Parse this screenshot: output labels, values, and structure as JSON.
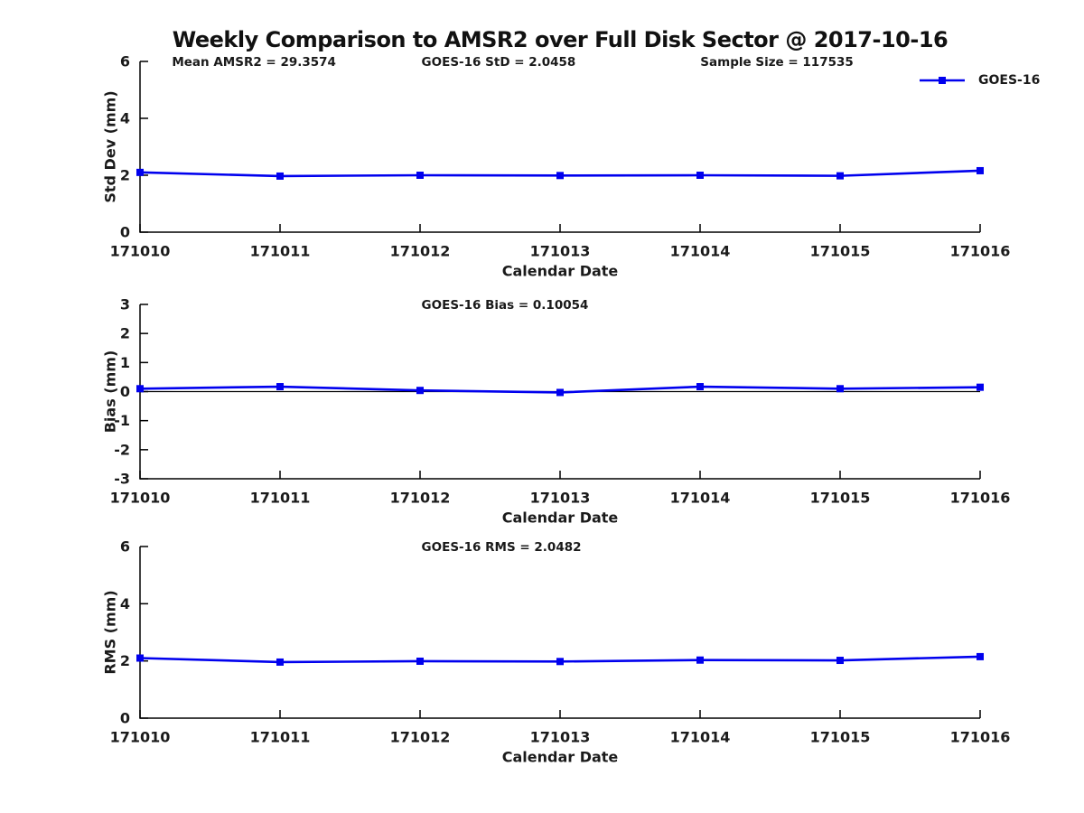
{
  "title": "Weekly Comparison to AMSR2 over Full Disk Sector @ 2017-10-16",
  "colors": {
    "line": "#0000EE",
    "axis": "#000000",
    "text": "#1a1a1a"
  },
  "legend": {
    "label": "GOES-16"
  },
  "chart_data": [
    {
      "type": "line",
      "name": "stddev",
      "ylabel": "Std Dev (mm)",
      "xlabel": "Calendar Date",
      "categories": [
        "171010",
        "171011",
        "171012",
        "171013",
        "171014",
        "171015",
        "171016"
      ],
      "series": [
        {
          "name": "GOES-16",
          "values": [
            2.1,
            1.97,
            2.0,
            1.99,
            2.0,
            1.98,
            2.16
          ]
        }
      ],
      "ylim": [
        0,
        6
      ],
      "yticks": [
        0,
        2,
        4,
        6
      ],
      "grid": false,
      "legend_position": "top-right",
      "show_legend": true,
      "zero_line": false,
      "annotations": [
        {
          "id": "mean-amsr2",
          "text": "Mean AMSR2 = 29.3574",
          "xfrac": 0.038
        },
        {
          "id": "goes16-std",
          "text": "GOES-16 StD = 2.0458",
          "xfrac": 0.335
        },
        {
          "id": "sample-size",
          "text": "Sample Size = 117535",
          "xfrac": 0.667
        }
      ]
    },
    {
      "type": "line",
      "name": "bias",
      "ylabel": "Bias (mm)",
      "xlabel": "Calendar Date",
      "categories": [
        "171010",
        "171011",
        "171012",
        "171013",
        "171014",
        "171015",
        "171016"
      ],
      "series": [
        {
          "name": "GOES-16",
          "values": [
            0.1,
            0.17,
            0.04,
            -0.03,
            0.17,
            0.1,
            0.15
          ]
        }
      ],
      "ylim": [
        -3,
        3
      ],
      "yticks": [
        3,
        2,
        1,
        0,
        -1,
        -2,
        -3
      ],
      "grid": false,
      "show_legend": false,
      "zero_line": true,
      "annotations": [
        {
          "id": "goes16-bias",
          "text": "GOES-16 Bias  = 0.10054",
          "xfrac": 0.335
        }
      ]
    },
    {
      "type": "line",
      "name": "rms",
      "ylabel": "RMS (mm)",
      "xlabel": "Calendar Date",
      "categories": [
        "171010",
        "171011",
        "171012",
        "171013",
        "171014",
        "171015",
        "171016"
      ],
      "series": [
        {
          "name": "GOES-16",
          "values": [
            2.1,
            1.96,
            1.99,
            1.98,
            2.03,
            2.02,
            2.15
          ]
        }
      ],
      "ylim": [
        0,
        6
      ],
      "yticks": [
        0,
        2,
        4,
        6
      ],
      "grid": false,
      "show_legend": false,
      "zero_line": false,
      "annotations": [
        {
          "id": "goes16-rms",
          "text": "GOES-16 RMS = 2.0482",
          "xfrac": 0.335
        }
      ]
    }
  ]
}
